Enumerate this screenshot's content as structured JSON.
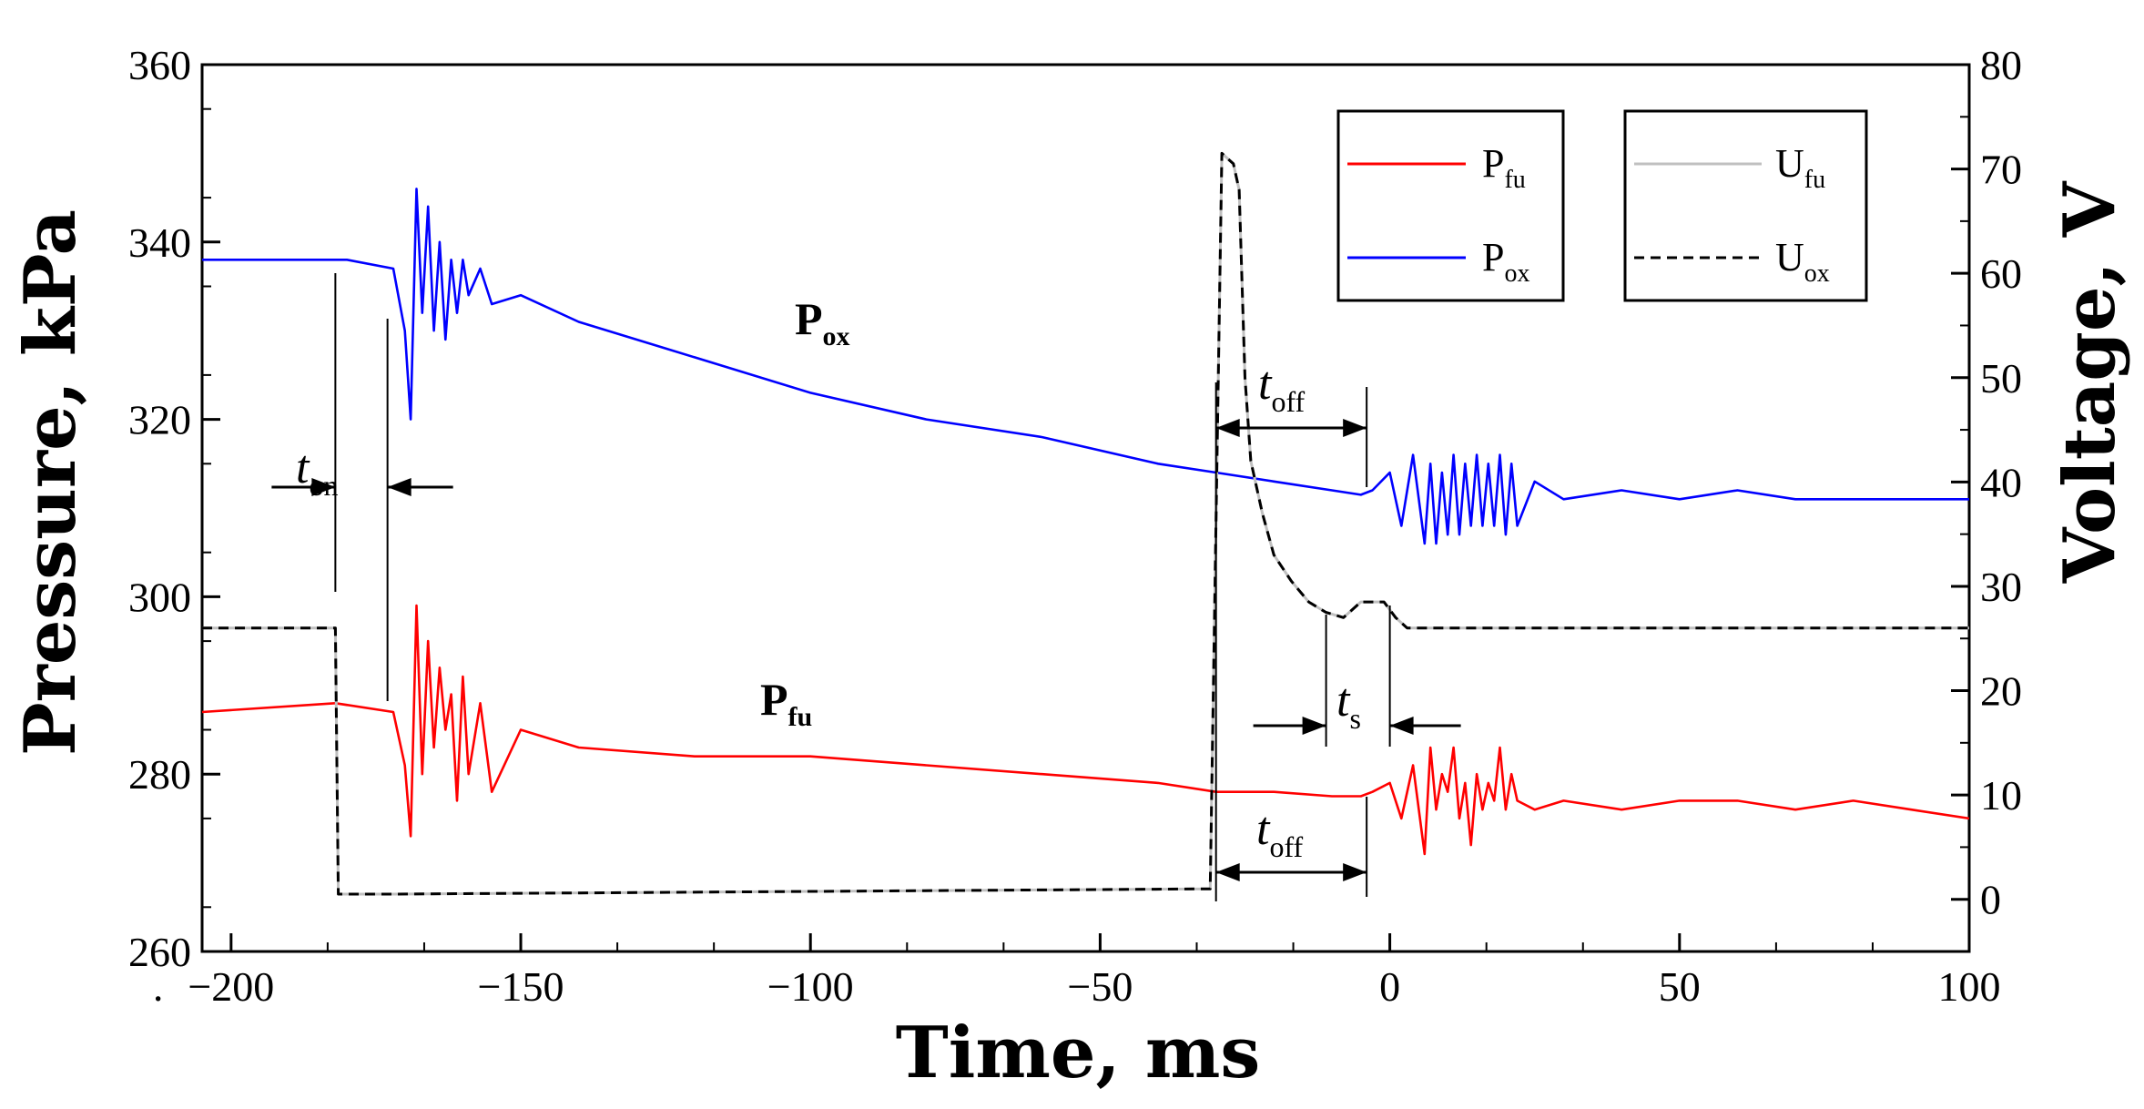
{
  "chart_data": {
    "type": "line",
    "title": "",
    "xlabel": "Time, ms",
    "ylabel_left": "Pressure, kPa",
    "ylabel_right": "Voltage, V",
    "xlim": [
      -205,
      100
    ],
    "ylim_left": [
      260,
      360
    ],
    "ylim_right": [
      -5,
      80
    ],
    "x_ticks": [
      -200,
      -150,
      -100,
      -50,
      0,
      50,
      100
    ],
    "x_tick_labels": [
      "−200",
      "−150",
      "−100",
      "−50",
      "0",
      "50",
      "100"
    ],
    "y_left_ticks": [
      260,
      280,
      300,
      320,
      340,
      360
    ],
    "y_left_tick_labels": [
      "260",
      "280",
      "300",
      "320",
      "340",
      "360"
    ],
    "y_right_ticks": [
      0,
      10,
      20,
      30,
      40,
      50,
      60,
      70,
      80
    ],
    "y_right_tick_labels": [
      "0",
      "10",
      "20",
      "30",
      "40",
      "50",
      "60",
      "70",
      "80"
    ],
    "grid": false,
    "colors": {
      "P_fu": "#ff0000",
      "P_ox": "#0000ff",
      "U_fu": "#c0c0c0",
      "U_ox": "#000000"
    },
    "series": [
      {
        "name": "P_fu",
        "axis": "left",
        "style": "solid",
        "x": [
          -205,
          -182,
          -172,
          -170,
          -169,
          -168,
          -167,
          -166,
          -165,
          -164,
          -163,
          -162,
          -161,
          -160,
          -159,
          -157,
          -155,
          -150,
          -140,
          -120,
          -100,
          -80,
          -60,
          -40,
          -30,
          -20,
          -10,
          -5,
          -3,
          0,
          2,
          4,
          6,
          7,
          8,
          9,
          10,
          11,
          12,
          13,
          14,
          15,
          16,
          17,
          18,
          19,
          20,
          21,
          22,
          25,
          30,
          40,
          50,
          60,
          70,
          80,
          90,
          100
        ],
        "y": [
          287,
          288,
          287,
          281,
          273,
          299,
          280,
          295,
          283,
          292,
          285,
          289,
          277,
          291,
          280,
          288,
          278,
          285,
          283,
          282,
          282,
          281,
          280,
          279,
          278,
          278,
          277.5,
          277.5,
          278,
          279,
          275,
          281,
          271,
          283,
          276,
          280,
          278,
          283,
          275,
          279,
          272,
          280,
          276,
          279,
          277,
          283,
          276,
          280,
          277,
          276,
          277,
          276,
          277,
          277,
          276,
          277,
          276,
          275
        ]
      },
      {
        "name": "P_ox",
        "axis": "left",
        "style": "solid",
        "x": [
          -205,
          -180,
          -172,
          -170,
          -169,
          -168,
          -167,
          -166,
          -165,
          -164,
          -163,
          -162,
          -161,
          -160,
          -159,
          -157,
          -155,
          -150,
          -140,
          -120,
          -100,
          -80,
          -60,
          -40,
          -30,
          -20,
          -10,
          -5,
          -3,
          0,
          2,
          4,
          6,
          7,
          8,
          9,
          10,
          11,
          12,
          13,
          14,
          15,
          16,
          17,
          18,
          19,
          20,
          21,
          22,
          25,
          30,
          40,
          50,
          60,
          70,
          80,
          90,
          100
        ],
        "y": [
          338,
          338,
          337,
          330,
          320,
          346,
          332,
          344,
          330,
          340,
          329,
          338,
          332,
          338,
          334,
          337,
          333,
          334,
          331,
          327,
          323,
          320,
          318,
          315,
          314,
          313,
          312,
          311.5,
          312,
          314,
          308,
          316,
          306,
          315,
          306,
          314,
          307,
          316,
          307,
          315,
          308,
          316,
          308,
          315,
          308,
          316,
          307,
          315,
          308,
          313,
          311,
          312,
          311,
          312,
          311,
          311,
          311,
          311
        ]
      },
      {
        "name": "U_fu",
        "axis": "right",
        "style": "solid",
        "x": [
          -205,
          -182,
          -181.5,
          -172,
          -31,
          -29,
          -27,
          -26,
          -25,
          -24,
          -22,
          -20,
          -17,
          -14,
          -11,
          -8,
          -5,
          -3,
          -1,
          1,
          3,
          5,
          7,
          100
        ],
        "y": [
          26,
          26,
          0.5,
          0.5,
          1,
          71.5,
          70.5,
          68,
          50,
          42,
          37,
          33,
          30.5,
          28.5,
          27.5,
          27,
          28.5,
          28.5,
          28.5,
          27,
          26,
          26,
          26,
          26
        ]
      },
      {
        "name": "U_ox",
        "axis": "right",
        "style": "dashed",
        "x": [
          -205,
          -182,
          -181.5,
          -172,
          -31,
          -29,
          -27,
          -26,
          -25,
          -24,
          -22,
          -20,
          -17,
          -14,
          -11,
          -8,
          -5,
          -3,
          -1,
          1,
          3,
          5,
          7,
          100
        ],
        "y": [
          26,
          26,
          0.5,
          0.5,
          1,
          71.5,
          70.5,
          68,
          50,
          42,
          37,
          33,
          30.5,
          28.5,
          27.5,
          27,
          28.5,
          28.5,
          28.5,
          27,
          26,
          26,
          26,
          26
        ]
      }
    ],
    "legend": {
      "placement": "top-right",
      "entries": [
        {
          "series": "P_fu",
          "main": "P",
          "sub": "fu"
        },
        {
          "series": "P_ox",
          "main": "P",
          "sub": "ox"
        },
        {
          "series": "U_fu",
          "main": "U",
          "sub": "fu"
        },
        {
          "series": "U_ox",
          "main": "U",
          "sub": "ox"
        }
      ]
    },
    "annotations": [
      {
        "name": "t-on",
        "main": "t",
        "sub": "on",
        "from_x": -182,
        "to_x": -173
      },
      {
        "name": "t-off-upper",
        "main": "t",
        "sub": "off",
        "from_x": -30,
        "to_x": -4
      },
      {
        "name": "t-off-lower",
        "main": "t",
        "sub": "off",
        "from_x": -30,
        "to_x": -4
      },
      {
        "name": "t-s",
        "main": "t",
        "sub": "s",
        "from_x": -11,
        "to_x": 0
      }
    ],
    "series_labels": [
      {
        "name": "label-p-ox",
        "main": "P",
        "sub": "ox",
        "color": "#0000ff"
      },
      {
        "name": "label-p-fu",
        "main": "P",
        "sub": "fu",
        "color": "#ff0000"
      }
    ],
    "stray_mark": "·"
  }
}
